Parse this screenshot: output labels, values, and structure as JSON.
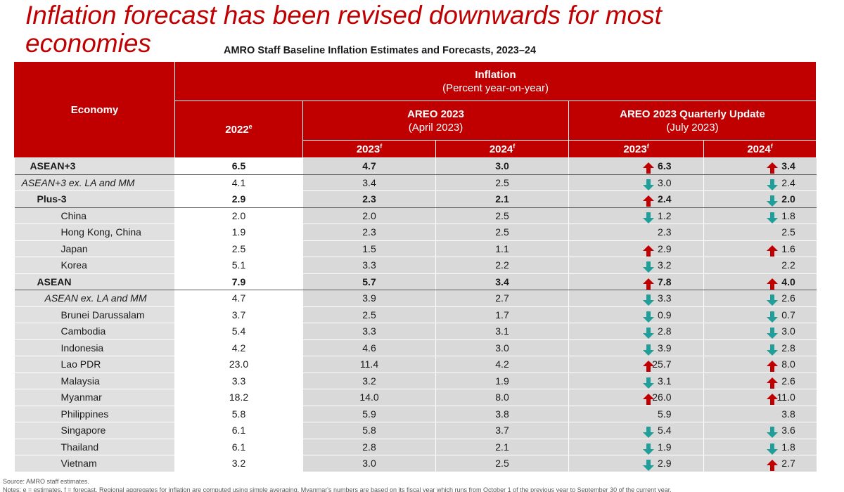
{
  "slide_title": "Inflation forecast has been revised downwards for most economies",
  "table_title": "AMRO Staff Baseline Inflation Estimates and Forecasts, 2023–24",
  "header": {
    "economy": "Economy",
    "inflation": "Inflation",
    "inflation_sub": "(Percent year-on-year)",
    "y2022": "2022",
    "y2022_sup": "e",
    "areo": "AREO 2023",
    "areo_sub": "(April 2023)",
    "quarterly": "AREO 2023 Quarterly Update",
    "quarterly_sub": "(July 2023)",
    "y2023": "2023",
    "y2024": "2024",
    "forecast_sup": "f"
  },
  "colors": {
    "brand_red": "#c00000",
    "arrow_up": "#c00000",
    "arrow_down": "#1f9e9a"
  },
  "chart_data": {
    "type": "table",
    "columns": [
      "Economy",
      "2022e",
      "AREO 2023 2023f",
      "AREO 2023 2024f",
      "Quarterly Update 2023f",
      "Quarterly Update 2024f"
    ],
    "rows": [
      {
        "economy": "ASEAN+3",
        "level": "lvl0",
        "bold": true,
        "y2022": "6.5",
        "areo_2023": "4.7",
        "areo_2024": "3.0",
        "q_2023": "6.3",
        "q_2023_dir": "up",
        "q_2024": "3.4",
        "q_2024_dir": "up"
      },
      {
        "economy": "ASEAN+3 ex. LA and MM",
        "level": "lvl0x",
        "bold": false,
        "y2022": "4.1",
        "areo_2023": "3.4",
        "areo_2024": "2.5",
        "q_2023": "3.0",
        "q_2023_dir": "down",
        "q_2024": "2.4",
        "q_2024_dir": "down"
      },
      {
        "economy": "Plus-3",
        "level": "lvl1",
        "bold": true,
        "y2022": "2.9",
        "areo_2023": "2.3",
        "areo_2024": "2.1",
        "q_2023": "2.4",
        "q_2023_dir": "up",
        "q_2024": "2.0",
        "q_2024_dir": "down"
      },
      {
        "economy": "China",
        "level": "lvl2",
        "bold": false,
        "y2022": "2.0",
        "areo_2023": "2.0",
        "areo_2024": "2.5",
        "q_2023": "1.2",
        "q_2023_dir": "down",
        "q_2024": "1.8",
        "q_2024_dir": "down"
      },
      {
        "economy": "Hong Kong, China",
        "level": "lvl2",
        "bold": false,
        "y2022": "1.9",
        "areo_2023": "2.3",
        "areo_2024": "2.5",
        "q_2023": "2.3",
        "q_2023_dir": "none",
        "q_2024": "2.5",
        "q_2024_dir": "none"
      },
      {
        "economy": "Japan",
        "level": "lvl2",
        "bold": false,
        "y2022": "2.5",
        "areo_2023": "1.5",
        "areo_2024": "1.1",
        "q_2023": "2.9",
        "q_2023_dir": "up",
        "q_2024": "1.6",
        "q_2024_dir": "up"
      },
      {
        "economy": "Korea",
        "level": "lvl2",
        "bold": false,
        "y2022": "5.1",
        "areo_2023": "3.3",
        "areo_2024": "2.2",
        "q_2023": "3.2",
        "q_2023_dir": "down",
        "q_2024": "2.2",
        "q_2024_dir": "none"
      },
      {
        "economy": "ASEAN",
        "level": "lvl1",
        "bold": true,
        "y2022": "7.9",
        "areo_2023": "5.7",
        "areo_2024": "3.4",
        "q_2023": "7.8",
        "q_2023_dir": "up",
        "q_2024": "4.0",
        "q_2024_dir": "up"
      },
      {
        "economy": "ASEAN ex. LA and MM",
        "level": "lvl1x",
        "bold": false,
        "y2022": "4.7",
        "areo_2023": "3.9",
        "areo_2024": "2.7",
        "q_2023": "3.3",
        "q_2023_dir": "down",
        "q_2024": "2.6",
        "q_2024_dir": "down"
      },
      {
        "economy": "Brunei Darussalam",
        "level": "lvl2",
        "bold": false,
        "y2022": "3.7",
        "areo_2023": "2.5",
        "areo_2024": "1.7",
        "q_2023": "0.9",
        "q_2023_dir": "down",
        "q_2024": "0.7",
        "q_2024_dir": "down"
      },
      {
        "economy": "Cambodia",
        "level": "lvl2",
        "bold": false,
        "y2022": "5.4",
        "areo_2023": "3.3",
        "areo_2024": "3.1",
        "q_2023": "2.8",
        "q_2023_dir": "down",
        "q_2024": "3.0",
        "q_2024_dir": "down"
      },
      {
        "economy": "Indonesia",
        "level": "lvl2",
        "bold": false,
        "y2022": "4.2",
        "areo_2023": "4.6",
        "areo_2024": "3.0",
        "q_2023": "3.9",
        "q_2023_dir": "down",
        "q_2024": "2.8",
        "q_2024_dir": "down"
      },
      {
        "economy": "Lao PDR",
        "level": "lvl2",
        "bold": false,
        "y2022": "23.0",
        "areo_2023": "11.4",
        "areo_2024": "4.2",
        "q_2023": "25.7",
        "q_2023_dir": "up",
        "q_2024": "8.0",
        "q_2024_dir": "up"
      },
      {
        "economy": "Malaysia",
        "level": "lvl2",
        "bold": false,
        "y2022": "3.3",
        "areo_2023": "3.2",
        "areo_2024": "1.9",
        "q_2023": "3.1",
        "q_2023_dir": "down",
        "q_2024": "2.6",
        "q_2024_dir": "up"
      },
      {
        "economy": "Myanmar",
        "level": "lvl2",
        "bold": false,
        "y2022": "18.2",
        "areo_2023": "14.0",
        "areo_2024": "8.0",
        "q_2023": "26.0",
        "q_2023_dir": "up",
        "q_2024": "11.0",
        "q_2024_dir": "up"
      },
      {
        "economy": "Philippines",
        "level": "lvl2",
        "bold": false,
        "y2022": "5.8",
        "areo_2023": "5.9",
        "areo_2024": "3.8",
        "q_2023": "5.9",
        "q_2023_dir": "none",
        "q_2024": "3.8",
        "q_2024_dir": "none"
      },
      {
        "economy": "Singapore",
        "level": "lvl2",
        "bold": false,
        "y2022": "6.1",
        "areo_2023": "5.8",
        "areo_2024": "3.7",
        "q_2023": "5.4",
        "q_2023_dir": "down",
        "q_2024": "3.6",
        "q_2024_dir": "down"
      },
      {
        "economy": "Thailand",
        "level": "lvl2",
        "bold": false,
        "y2022": "6.1",
        "areo_2023": "2.8",
        "areo_2024": "2.1",
        "q_2023": "1.9",
        "q_2023_dir": "down",
        "q_2024": "1.8",
        "q_2024_dir": "down"
      },
      {
        "economy": "Vietnam",
        "level": "lvl2",
        "bold": false,
        "y2022": "3.2",
        "areo_2023": "3.0",
        "areo_2024": "2.5",
        "q_2023": "2.9",
        "q_2023_dir": "down",
        "q_2024": "2.7",
        "q_2024_dir": "up"
      }
    ]
  },
  "source": "Source: AMRO staff estimates.",
  "notes": "Notes: e = estimates, f = forecast. Regional aggregates for inflation are computed using simple averaging. Myanmar's numbers are based on its fiscal year which runs from October 1 of the previous year to September 30 of the current year."
}
